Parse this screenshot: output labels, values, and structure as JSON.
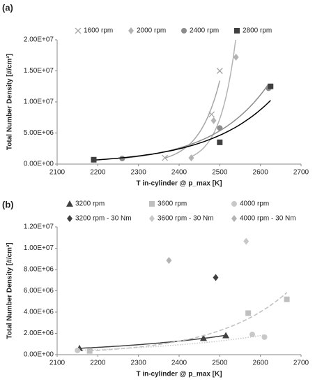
{
  "chart_data": [
    {
      "type": "scatter",
      "panel_label": "(a)",
      "x_label": "T in-cylinder @ p_max [K]",
      "y_label": "Total Number Density [#/cm³]",
      "xlim": [
        2100,
        2700
      ],
      "xticks": [
        2100,
        2200,
        2300,
        2400,
        2500,
        2600,
        2700
      ],
      "ylim": [
        0,
        20000000
      ],
      "yticks": [
        {
          "value": 0,
          "label": "0.00E+00"
        },
        {
          "value": 5000000,
          "label": "5.00E+06"
        },
        {
          "value": 10000000,
          "label": "1.00E+07"
        },
        {
          "value": 15000000,
          "label": "1.50E+07"
        },
        {
          "value": 20000000,
          "label": "2.00E+07"
        }
      ],
      "series": [
        {
          "name": "1600 rpm",
          "marker": "cross",
          "color": "#a6a6a6",
          "trendline": "solid",
          "x": [
            2365,
            2480,
            2500
          ],
          "values": [
            1000000,
            8000000,
            15000000
          ]
        },
        {
          "name": "2000 rpm",
          "marker": "diamond",
          "color": "#b3b3b3",
          "trendline": "solid",
          "x": [
            2430,
            2485,
            2540
          ],
          "values": [
            1000000,
            7000000,
            17200000
          ]
        },
        {
          "name": "2400 rpm",
          "marker": "circle",
          "color": "#8c8c8c",
          "trendline": "solid",
          "x": [
            2260,
            2500,
            2620
          ],
          "values": [
            900000,
            5800000,
            12200000
          ]
        },
        {
          "name": "2800 rpm",
          "marker": "square",
          "color": "#404040",
          "trendline": "solid",
          "x": [
            2190,
            2500,
            2625
          ],
          "values": [
            700000,
            3500000,
            12500000
          ]
        }
      ]
    },
    {
      "type": "scatter",
      "panel_label": "(b)",
      "x_label": "T in-cylinder @ p_max [K]",
      "y_label": "Total Number Density [#/cm³]",
      "xlim": [
        2100,
        2700
      ],
      "xticks": [
        2100,
        2200,
        2300,
        2400,
        2500,
        2600,
        2700
      ],
      "ylim": [
        0,
        12000000
      ],
      "yticks": [
        {
          "value": 0,
          "label": "0.00E+00"
        },
        {
          "value": 2000000,
          "label": "2.00E+06"
        },
        {
          "value": 4000000,
          "label": "4.00E+06"
        },
        {
          "value": 6000000,
          "label": "6.00E+06"
        },
        {
          "value": 8000000,
          "label": "8.00E+06"
        },
        {
          "value": 10000000,
          "label": "1.00E+07"
        },
        {
          "value": 12000000,
          "label": "1.20E+07"
        }
      ],
      "series": [
        {
          "name": "3200 rpm",
          "marker": "triangle",
          "color": "#404040",
          "trendline": "solid",
          "x": [
            2155,
            2460,
            2515
          ],
          "values": [
            600000,
            1550000,
            1800000
          ]
        },
        {
          "name": "3600 rpm",
          "marker": "square",
          "color": "#bfbfbf",
          "trendline": "dashed",
          "x": [
            2180,
            2570,
            2665
          ],
          "values": [
            350000,
            3900000,
            5200000
          ]
        },
        {
          "name": "4000 rpm",
          "marker": "circle",
          "color": "#c8c8c8",
          "trendline": "dotted",
          "x": [
            2150,
            2580,
            2610
          ],
          "values": [
            400000,
            1900000,
            1650000
          ]
        },
        {
          "name": "3200 rpm - 30 Nm",
          "marker": "diamond",
          "color": "#404040",
          "x": [
            2490
          ],
          "values": [
            7250000
          ]
        },
        {
          "name": "3600 rpm - 30 Nm",
          "marker": "diamond",
          "color": "#c8c8c8",
          "x": [
            2565
          ],
          "values": [
            10650000
          ]
        },
        {
          "name": "4000 rpm - 30 Nm",
          "marker": "diamond",
          "color": "#b3b3b3",
          "x": [
            2375
          ],
          "values": [
            8850000
          ]
        }
      ]
    }
  ]
}
